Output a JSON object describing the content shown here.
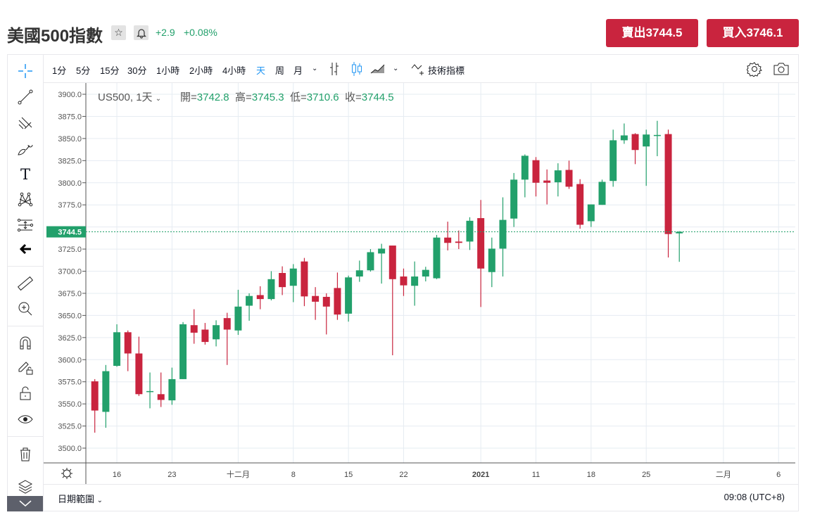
{
  "header": {
    "title": "美國500指數",
    "change": "+2.9",
    "change_pct": "+0.08%",
    "sell_label": "賣出3744.5",
    "buy_label": "買入3746.1",
    "star_icon": "☆",
    "bell_icon": "bell"
  },
  "toolbar": {
    "timeframes": [
      "1分",
      "5分",
      "15分",
      "30分",
      "1小時",
      "2小時",
      "4小時",
      "天",
      "周",
      "月"
    ],
    "active": "天",
    "indicators_label": "技術指標"
  },
  "legend": {
    "symbol": "US500, 1天",
    "open_label": "開=",
    "open": "3742.8",
    "high_label": "高=",
    "high": "3745.3",
    "low_label": "低=",
    "low": "3710.6",
    "close_label": "收=",
    "close": "3744.5"
  },
  "footer": {
    "date_range": "日期範圍",
    "time": "09:08 (UTC+8)"
  },
  "colors": {
    "up": "#22a06b",
    "down": "#c9243e",
    "accent": "#2196f3"
  },
  "chart_data": {
    "type": "candlestick",
    "symbol": "US500",
    "interval": "1天",
    "ylim": [
      3490,
      3912
    ],
    "y_ticks": [
      3500,
      3525,
      3550,
      3575,
      3600,
      3625,
      3650,
      3675,
      3700,
      3725,
      3750,
      3775,
      3800,
      3825,
      3850,
      3875,
      3900
    ],
    "last_price": 3744.5,
    "last_price_label": "3744.5",
    "x_labels": [
      {
        "i": 2,
        "label": "16"
      },
      {
        "i": 7,
        "label": "23"
      },
      {
        "i": 13,
        "label": "十二月"
      },
      {
        "i": 18,
        "label": "8"
      },
      {
        "i": 23,
        "label": "15"
      },
      {
        "i": 28,
        "label": "22"
      },
      {
        "i": 35,
        "label": "2021",
        "bold": true
      },
      {
        "i": 40,
        "label": "11"
      },
      {
        "i": 45,
        "label": "18"
      },
      {
        "i": 50,
        "label": "25"
      },
      {
        "i": 57,
        "label": "二月"
      },
      {
        "i": 62,
        "label": "6"
      }
    ],
    "candles_ohlc": [
      [
        3575.5,
        3578,
        3517.5,
        3542.5
      ],
      [
        3541,
        3594,
        3523,
        3587
      ],
      [
        3593,
        3640,
        3592,
        3631
      ],
      [
        3631,
        3633,
        3587,
        3607
      ],
      [
        3607,
        3626,
        3559,
        3561
      ],
      [
        3564,
        3585.5,
        3545,
        3564.5
      ],
      [
        3561,
        3585.5,
        3546.5,
        3554.5
      ],
      [
        3554,
        3591,
        3549,
        3578
      ],
      [
        3578,
        3642.5,
        3578,
        3640
      ],
      [
        3639,
        3657,
        3618,
        3630.5
      ],
      [
        3634,
        3641.5,
        3617,
        3620
      ],
      [
        3623,
        3644.5,
        3615,
        3639
      ],
      [
        3647,
        3653,
        3594,
        3634
      ],
      [
        3633,
        3679,
        3628,
        3660
      ],
      [
        3661,
        3675,
        3644,
        3672
      ],
      [
        3673,
        3683,
        3657,
        3668.5
      ],
      [
        3668.5,
        3700,
        3667,
        3691
      ],
      [
        3698,
        3705.5,
        3673,
        3682
      ],
      [
        3683.5,
        3708,
        3665,
        3703
      ],
      [
        3711,
        3715,
        3660.5,
        3671.5
      ],
      [
        3672,
        3682,
        3645,
        3665.5
      ],
      [
        3671,
        3675,
        3628.5,
        3660
      ],
      [
        3681,
        3698.5,
        3645,
        3651
      ],
      [
        3652,
        3695,
        3643,
        3693
      ],
      [
        3694,
        3712,
        3688,
        3701
      ],
      [
        3701,
        3725,
        3699.5,
        3721.5
      ],
      [
        3720,
        3731,
        3686,
        3725.5
      ],
      [
        3729,
        3729,
        3605,
        3691
      ],
      [
        3694,
        3703,
        3672,
        3684
      ],
      [
        3683.5,
        3711,
        3661,
        3694
      ],
      [
        3694,
        3705,
        3688.5,
        3701.5
      ],
      [
        3692,
        3741,
        3691,
        3738
      ],
      [
        3738,
        3756,
        3723.5,
        3732
      ],
      [
        3733.5,
        3746,
        3725,
        3732
      ],
      [
        3733.5,
        3761,
        3724,
        3757
      ],
      [
        3760,
        3780.5,
        3659.5,
        3703
      ],
      [
        3699,
        3738,
        3682,
        3725.5
      ],
      [
        3725.5,
        3783.5,
        3694,
        3758
      ],
      [
        3759.5,
        3811,
        3750,
        3803.5
      ],
      [
        3803.5,
        3832,
        3783.5,
        3830.5
      ],
      [
        3825.5,
        3829,
        3784.5,
        3800
      ],
      [
        3802.5,
        3815,
        3775.5,
        3800
      ],
      [
        3800.5,
        3822,
        3784.5,
        3814
      ],
      [
        3814.5,
        3825,
        3793,
        3795.5
      ],
      [
        3798.5,
        3804,
        3748,
        3752.5
      ],
      [
        3756.5,
        3775.5,
        3750,
        3775.5
      ],
      [
        3775,
        3803.5,
        3775,
        3801
      ],
      [
        3802,
        3860,
        3795.5,
        3848
      ],
      [
        3848,
        3867,
        3844,
        3853.5
      ],
      [
        3855,
        3856,
        3821,
        3837
      ],
      [
        3841,
        3860,
        3796.5,
        3854.5
      ],
      [
        3853,
        3870,
        3830,
        3854
      ],
      [
        3855,
        3860,
        3715.5,
        3742
      ],
      [
        3742.8,
        3745.3,
        3710.6,
        3744.5
      ]
    ]
  }
}
